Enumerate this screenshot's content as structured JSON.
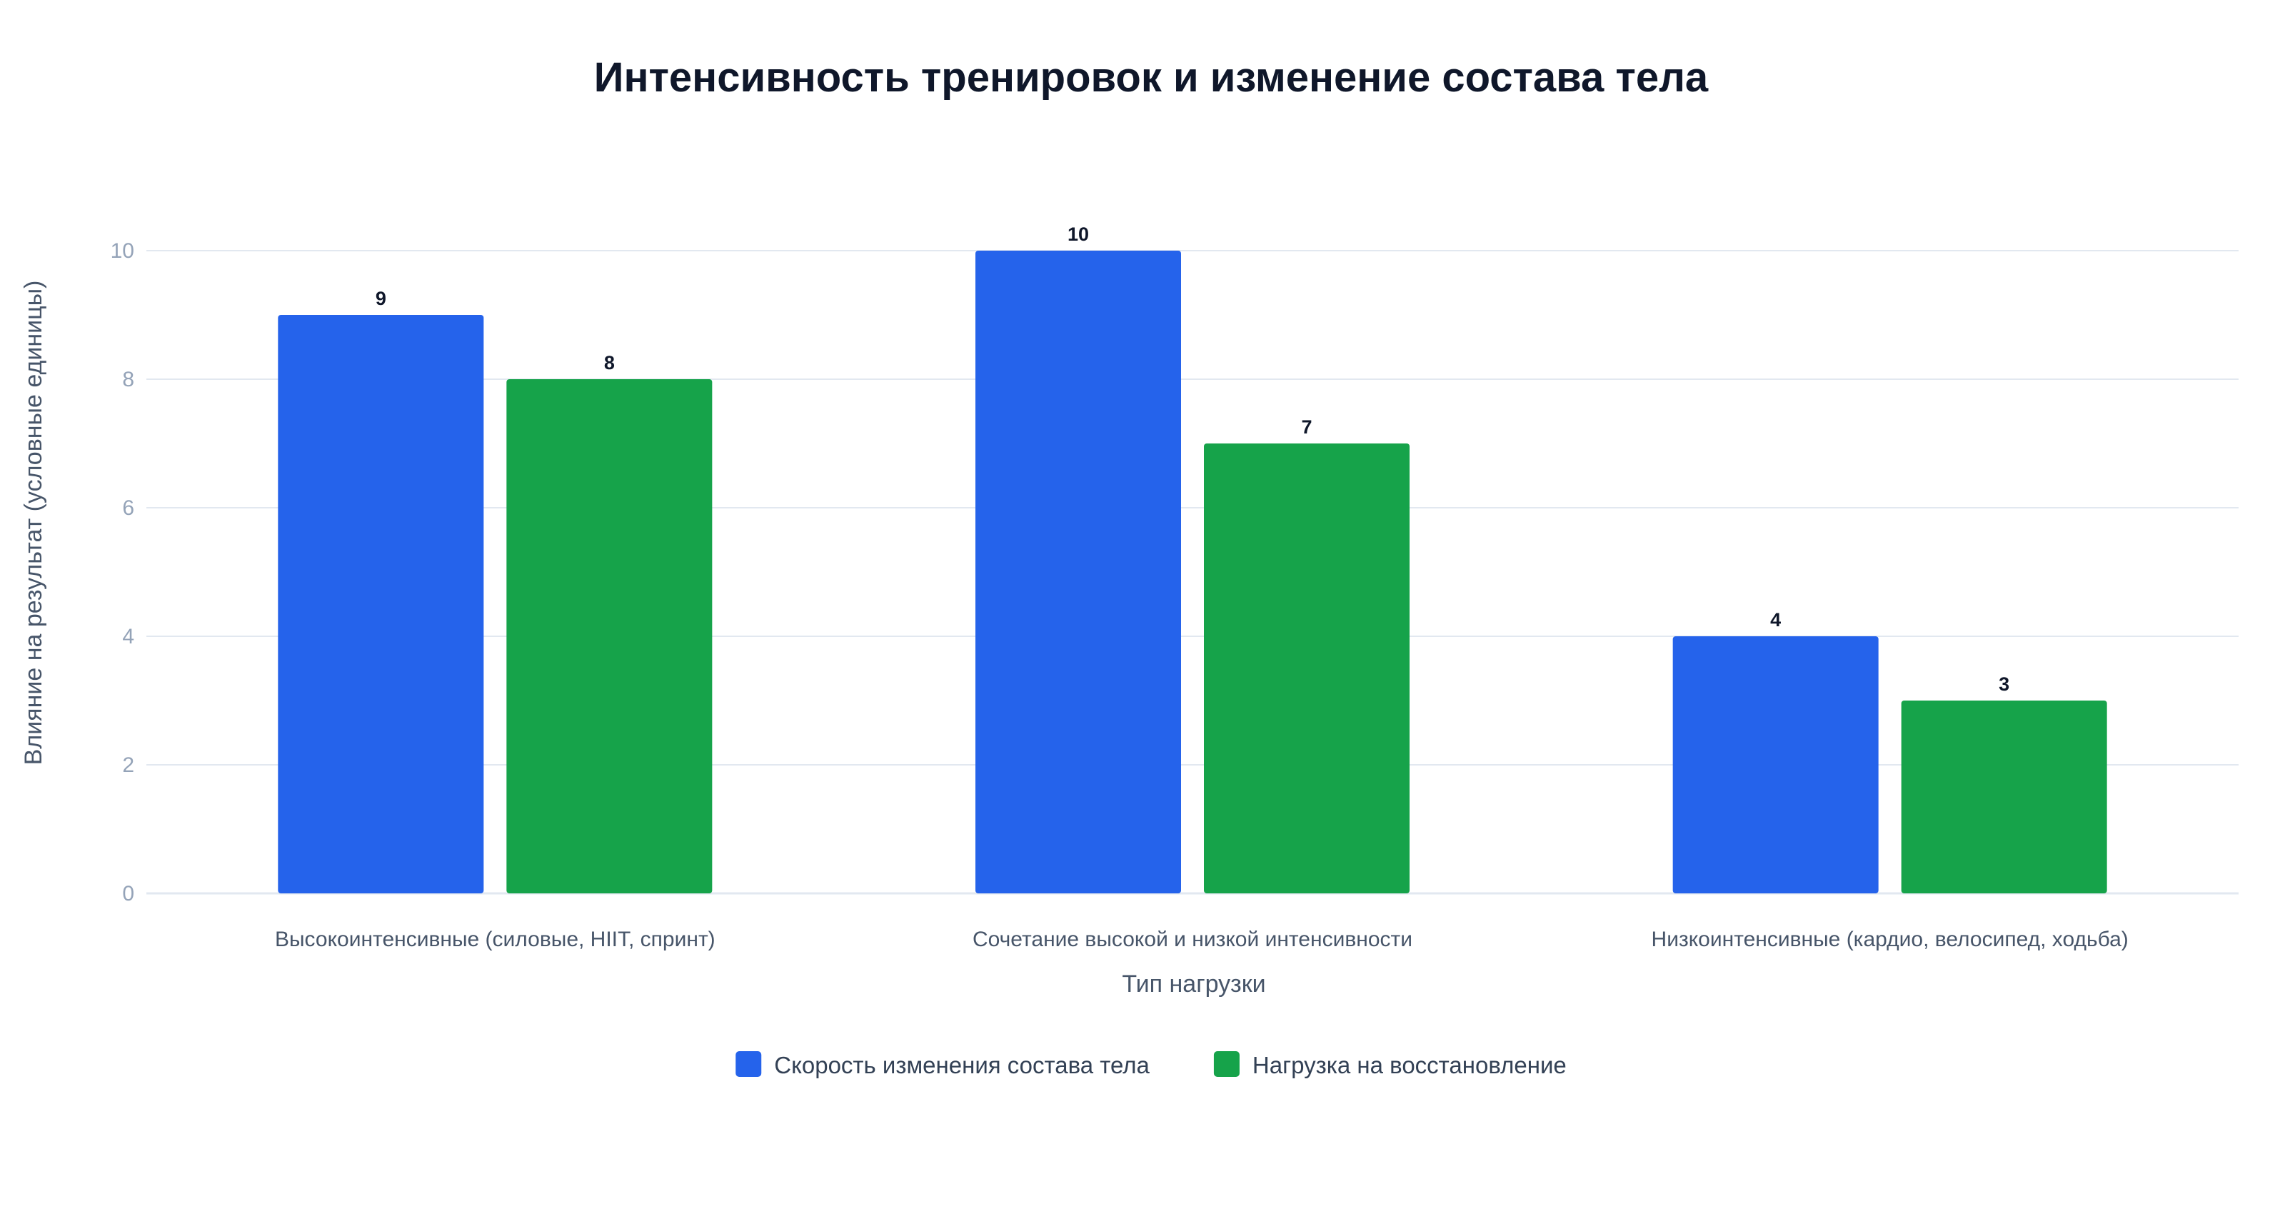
{
  "chart_data": {
    "type": "bar",
    "title": "Интенсивность тренировок и изменение состава тела",
    "xlabel": "Тип нагрузки",
    "ylabel": "Влияние на результат (условные единицы)",
    "categories": [
      "Высокоинтенсивные (силовые, HIIT, спринт)",
      "Сочетание высокой и низкой интенсивности",
      "Низкоинтенсивные (кардио, велосипед, ходьба)"
    ],
    "series": [
      {
        "name": "Скорость изменения состава тела",
        "color": "#2563eb",
        "values": [
          9,
          10,
          4
        ]
      },
      {
        "name": "Нагрузка на восстановление",
        "color": "#16a34a",
        "values": [
          8,
          7,
          3
        ]
      }
    ],
    "ylim": [
      0,
      10
    ],
    "yticks": [
      0,
      2,
      4,
      6,
      8,
      10
    ],
    "grid": true,
    "legend": "bottom-center",
    "data_labels": true
  }
}
